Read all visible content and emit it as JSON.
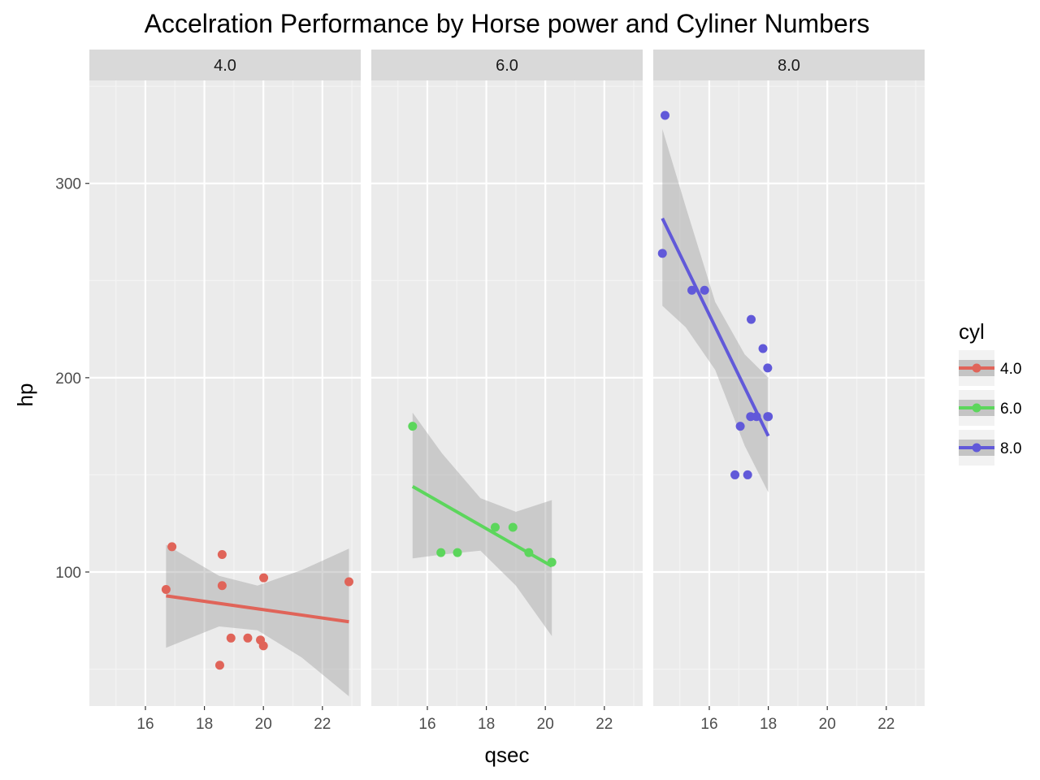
{
  "chart_data": {
    "type": "scatter",
    "title": "Accelration Performance by Horse power and Cyliner Numbers",
    "xlabel": "qsec",
    "ylabel": "hp",
    "xlim": [
      14.1,
      23.3
    ],
    "ylim": [
      31,
      353
    ],
    "x_ticks": [
      16,
      18,
      20,
      22
    ],
    "y_ticks": [
      100,
      200,
      300
    ],
    "grid": true,
    "facet_by": "cyl",
    "facets": [
      "4.0",
      "6.0",
      "8.0"
    ],
    "legend": {
      "title": "cyl",
      "position": "right",
      "entries": [
        "4.0",
        "6.0",
        "8.0"
      ]
    },
    "series": [
      {
        "name": "4.0",
        "color": "#E06459",
        "points": [
          {
            "x": 16.7,
            "y": 91
          },
          {
            "x": 16.9,
            "y": 113
          },
          {
            "x": 18.52,
            "y": 52
          },
          {
            "x": 18.6,
            "y": 109
          },
          {
            "x": 18.6,
            "y": 93
          },
          {
            "x": 18.9,
            "y": 66
          },
          {
            "x": 19.47,
            "y": 66
          },
          {
            "x": 19.9,
            "y": 65
          },
          {
            "x": 20.0,
            "y": 62
          },
          {
            "x": 20.01,
            "y": 97
          },
          {
            "x": 22.9,
            "y": 95
          }
        ],
        "fit": {
          "x0": 16.7,
          "y0": 87.7,
          "x1": 22.9,
          "y1": 74.4
        },
        "band": [
          {
            "x": 16.7,
            "lo": 61,
            "hi": 114
          },
          {
            "x": 18.5,
            "lo": 72,
            "hi": 98
          },
          {
            "x": 19.8,
            "lo": 70,
            "hi": 93
          },
          {
            "x": 21.3,
            "lo": 56,
            "hi": 101
          },
          {
            "x": 22.9,
            "lo": 36,
            "hi": 112
          }
        ]
      },
      {
        "name": "6.0",
        "color": "#5CD65C",
        "points": [
          {
            "x": 15.5,
            "y": 175
          },
          {
            "x": 16.46,
            "y": 110
          },
          {
            "x": 17.02,
            "y": 110
          },
          {
            "x": 18.3,
            "y": 123
          },
          {
            "x": 18.9,
            "y": 123
          },
          {
            "x": 19.44,
            "y": 110
          },
          {
            "x": 20.22,
            "y": 105
          }
        ],
        "fit": {
          "x0": 15.5,
          "y0": 144,
          "x1": 20.22,
          "y1": 103
        },
        "band": [
          {
            "x": 15.5,
            "lo": 107,
            "hi": 182
          },
          {
            "x": 16.5,
            "lo": 109,
            "hi": 161
          },
          {
            "x": 17.8,
            "lo": 111,
            "hi": 138
          },
          {
            "x": 19.0,
            "lo": 93,
            "hi": 131
          },
          {
            "x": 20.22,
            "lo": 67,
            "hi": 137
          }
        ]
      },
      {
        "name": "8.0",
        "color": "#6159D9",
        "points": [
          {
            "x": 14.5,
            "y": 335
          },
          {
            "x": 14.41,
            "y": 264
          },
          {
            "x": 15.41,
            "y": 245
          },
          {
            "x": 15.84,
            "y": 245
          },
          {
            "x": 16.87,
            "y": 150
          },
          {
            "x": 17.05,
            "y": 175
          },
          {
            "x": 17.3,
            "y": 150
          },
          {
            "x": 17.4,
            "y": 180
          },
          {
            "x": 17.42,
            "y": 230
          },
          {
            "x": 17.6,
            "y": 180
          },
          {
            "x": 17.82,
            "y": 215
          },
          {
            "x": 17.98,
            "y": 205
          },
          {
            "x": 18.0,
            "y": 180
          },
          {
            "x": 17.98,
            "y": 180
          }
        ],
        "fit": {
          "x0": 14.41,
          "y0": 282,
          "x1": 18.0,
          "y1": 170
        },
        "band": [
          {
            "x": 14.41,
            "lo": 237,
            "hi": 328
          },
          {
            "x": 15.2,
            "lo": 226,
            "hi": 288
          },
          {
            "x": 16.2,
            "lo": 204,
            "hi": 239
          },
          {
            "x": 17.2,
            "lo": 165,
            "hi": 212
          },
          {
            "x": 18.0,
            "lo": 141,
            "hi": 200
          }
        ]
      }
    ]
  }
}
